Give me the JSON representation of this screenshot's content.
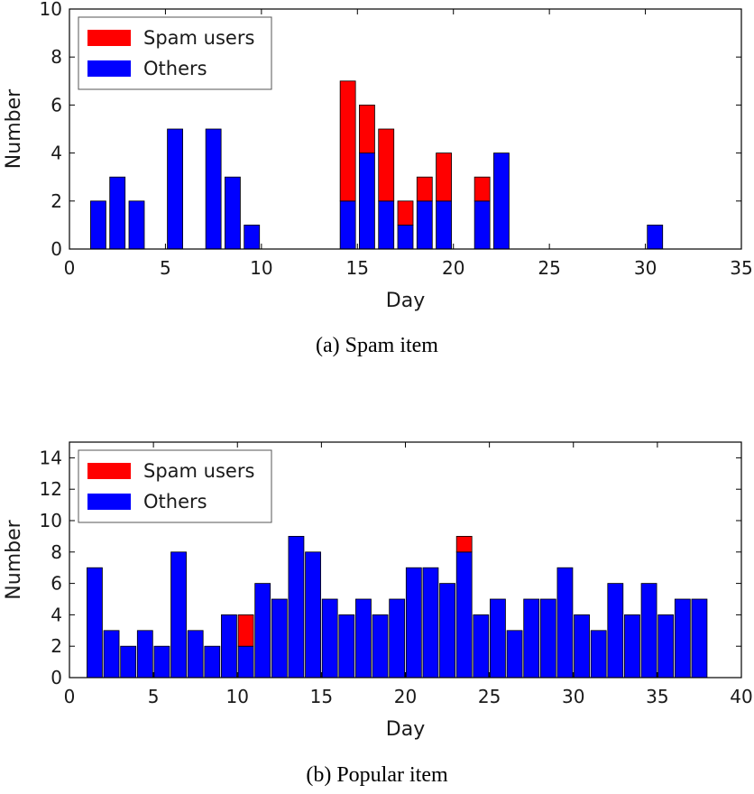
{
  "chart_data": [
    {
      "type": "bar",
      "stacked": true,
      "caption": "(a)  Spam item",
      "xlabel": "Day",
      "ylabel": "Number",
      "xlim": [
        0,
        35
      ],
      "ylim": [
        0,
        10
      ],
      "xticks": [
        "0",
        "5",
        "10",
        "15",
        "20",
        "25",
        "30",
        "35"
      ],
      "yticks": [
        "0",
        "2",
        "4",
        "6",
        "8",
        "10"
      ],
      "grid": false,
      "legend": "top-left",
      "x": [
        1,
        2,
        3,
        5,
        7,
        8,
        9,
        14,
        15,
        16,
        17,
        18,
        19,
        21,
        22,
        30
      ],
      "series": [
        {
          "name": "Spam users",
          "color": "#ff0000",
          "values": [
            0,
            0,
            0,
            0,
            0,
            0,
            0,
            5,
            2,
            3,
            1,
            1,
            2,
            1,
            0,
            0
          ]
        },
        {
          "name": "Others",
          "color": "#0000ff",
          "values": [
            2,
            3,
            2,
            5,
            5,
            3,
            1,
            2,
            4,
            2,
            1,
            2,
            2,
            2,
            4,
            1
          ]
        }
      ]
    },
    {
      "type": "bar",
      "stacked": true,
      "caption": "(b)  Popular item",
      "xlabel": "Day",
      "ylabel": "Number",
      "xlim": [
        0,
        40
      ],
      "ylim": [
        0,
        15
      ],
      "xticks": [
        "0",
        "5",
        "10",
        "15",
        "20",
        "25",
        "30",
        "35",
        "40"
      ],
      "yticks": [
        "0",
        "2",
        "4",
        "6",
        "8",
        "10",
        "12",
        "14"
      ],
      "grid": false,
      "legend": "top-left",
      "x": [
        1,
        2,
        3,
        4,
        5,
        6,
        7,
        8,
        9,
        10,
        11,
        12,
        13,
        14,
        15,
        16,
        17,
        18,
        19,
        20,
        21,
        22,
        23,
        24,
        25,
        26,
        27,
        28,
        29,
        30,
        31,
        32,
        33,
        34,
        35,
        36,
        37
      ],
      "series": [
        {
          "name": "Spam users",
          "color": "#ff0000",
          "values": [
            0,
            0,
            0,
            0,
            0,
            0,
            0,
            0,
            0,
            2,
            0,
            0,
            0,
            0,
            0,
            0,
            0,
            0,
            0,
            0,
            0,
            0,
            1,
            0,
            0,
            0,
            0,
            0,
            0,
            0,
            0,
            0,
            0,
            0,
            0,
            0,
            0
          ]
        },
        {
          "name": "Others",
          "color": "#0000ff",
          "values": [
            7,
            3,
            2,
            3,
            2,
            8,
            3,
            2,
            4,
            2,
            6,
            5,
            9,
            8,
            5,
            4,
            5,
            4,
            5,
            7,
            7,
            6,
            8,
            4,
            5,
            3,
            5,
            5,
            7,
            4,
            3,
            6,
            4,
            6,
            4,
            5,
            5
          ]
        }
      ]
    }
  ]
}
